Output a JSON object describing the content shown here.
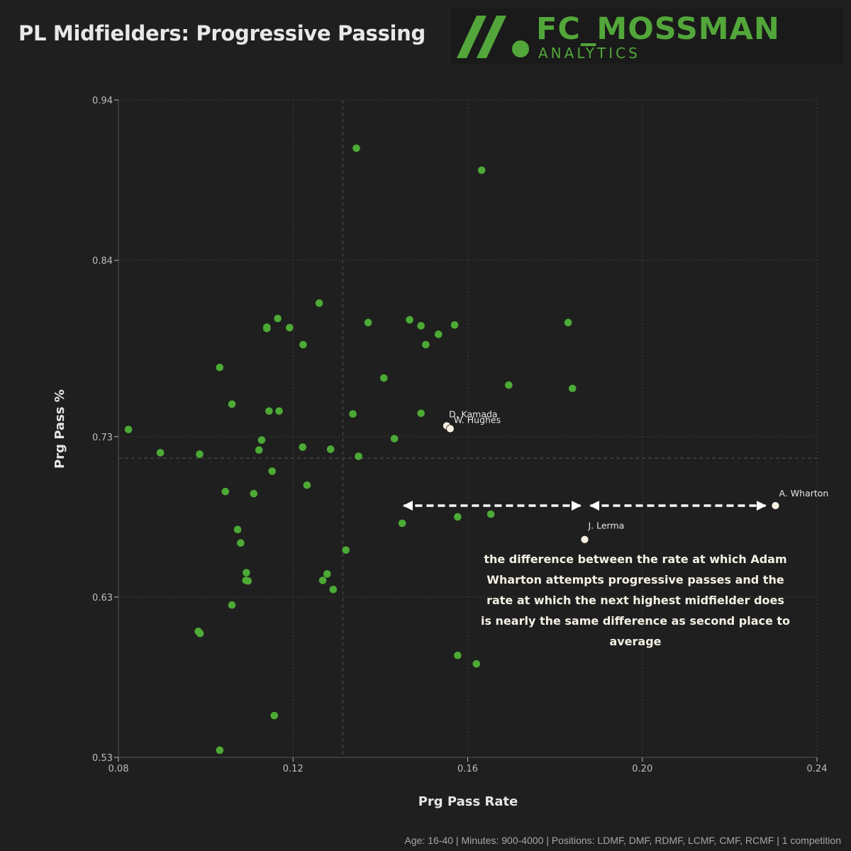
{
  "title": "PL Midfielders: Progressive Passing",
  "logo": {
    "name": "FC_MOSSMAN",
    "subtitle": "ANALYTICS",
    "color": "#52a63a"
  },
  "footer": "Age: 16-40 | Minutes: 900-4000 | Positions: LDMF, DMF, RDMF, LCMF, CMF, RCMF | 1 competition",
  "annotation": "the difference between the rate at which Adam Wharton attempts progressive passes and the rate at which the next highest midfielder does is nearly the same difference as second place to average",
  "chart_data": {
    "type": "scatter",
    "title": "PL Midfielders: Progressive Passing",
    "xlabel": "Prg Pass Rate",
    "ylabel": "Prg Pass %",
    "xlim": [
      0.08,
      0.24
    ],
    "ylim": [
      0.53,
      0.94
    ],
    "xticks": [
      "0.08",
      "0.12",
      "0.16",
      "0.20",
      "0.24"
    ],
    "yticks": [
      "0.53",
      "0.63",
      "0.73",
      "0.84",
      "0.94"
    ],
    "xtick_values": [
      0.08,
      0.12,
      0.16,
      0.2,
      0.24
    ],
    "ytick_values": [
      0.53,
      0.63,
      0.73,
      0.84,
      0.94
    ],
    "grid": true,
    "averages": {
      "x": 0.1314,
      "y": 0.7166
    },
    "colors": {
      "points": "#4caa35",
      "highlight": "#f6f1e0",
      "grid": "#3c3c3c",
      "average": "#4a4a4a"
    },
    "highlighted": [
      {
        "name": "A. Wharton",
        "x": 0.2305,
        "y": 0.687
      },
      {
        "name": "J. Lerma",
        "x": 0.1868,
        "y": 0.6659
      },
      {
        "name": "D. Kamada",
        "x": 0.1552,
        "y": 0.7368
      },
      {
        "name": "W. Hughes",
        "x": 0.156,
        "y": 0.735
      }
    ],
    "points": [
      [
        0.1345,
        0.9099
      ],
      [
        0.1632,
        0.8962
      ],
      [
        0.126,
        0.8133
      ],
      [
        0.1165,
        0.8037
      ],
      [
        0.114,
        0.7983
      ],
      [
        0.114,
        0.7975
      ],
      [
        0.1192,
        0.798
      ],
      [
        0.1223,
        0.7874
      ],
      [
        0.1372,
        0.8012
      ],
      [
        0.1467,
        0.8029
      ],
      [
        0.1493,
        0.7992
      ],
      [
        0.1533,
        0.7939
      ],
      [
        0.157,
        0.7997
      ],
      [
        0.1504,
        0.7874
      ],
      [
        0.183,
        0.8012
      ],
      [
        0.184,
        0.7601
      ],
      [
        0.1694,
        0.7622
      ],
      [
        0.1408,
        0.7666
      ],
      [
        0.1032,
        0.7732
      ],
      [
        0.106,
        0.7503
      ],
      [
        0.1145,
        0.746
      ],
      [
        0.1168,
        0.746
      ],
      [
        0.1337,
        0.7442
      ],
      [
        0.1493,
        0.7446
      ],
      [
        0.0823,
        0.7345
      ],
      [
        0.1128,
        0.7279
      ],
      [
        0.1122,
        0.7217
      ],
      [
        0.1222,
        0.7235
      ],
      [
        0.1286,
        0.7222
      ],
      [
        0.1432,
        0.7288
      ],
      [
        0.0896,
        0.72
      ],
      [
        0.0986,
        0.7191
      ],
      [
        0.135,
        0.7178
      ],
      [
        0.1152,
        0.7085
      ],
      [
        0.1232,
        0.6998
      ],
      [
        0.1045,
        0.6958
      ],
      [
        0.111,
        0.6945
      ],
      [
        0.1653,
        0.6817
      ],
      [
        0.1577,
        0.68
      ],
      [
        0.145,
        0.676
      ],
      [
        0.1073,
        0.6721
      ],
      [
        0.108,
        0.6637
      ],
      [
        0.1321,
        0.6593
      ],
      [
        0.1093,
        0.6452
      ],
      [
        0.1278,
        0.6444
      ],
      [
        0.1092,
        0.6404
      ],
      [
        0.1097,
        0.64
      ],
      [
        0.1268,
        0.6404
      ],
      [
        0.1292,
        0.6347
      ],
      [
        0.106,
        0.625
      ],
      [
        0.0983,
        0.6086
      ],
      [
        0.0987,
        0.6073
      ],
      [
        0.1577,
        0.5936
      ],
      [
        0.162,
        0.5883
      ],
      [
        0.1157,
        0.5561
      ],
      [
        0.1032,
        0.5345
      ]
    ]
  }
}
